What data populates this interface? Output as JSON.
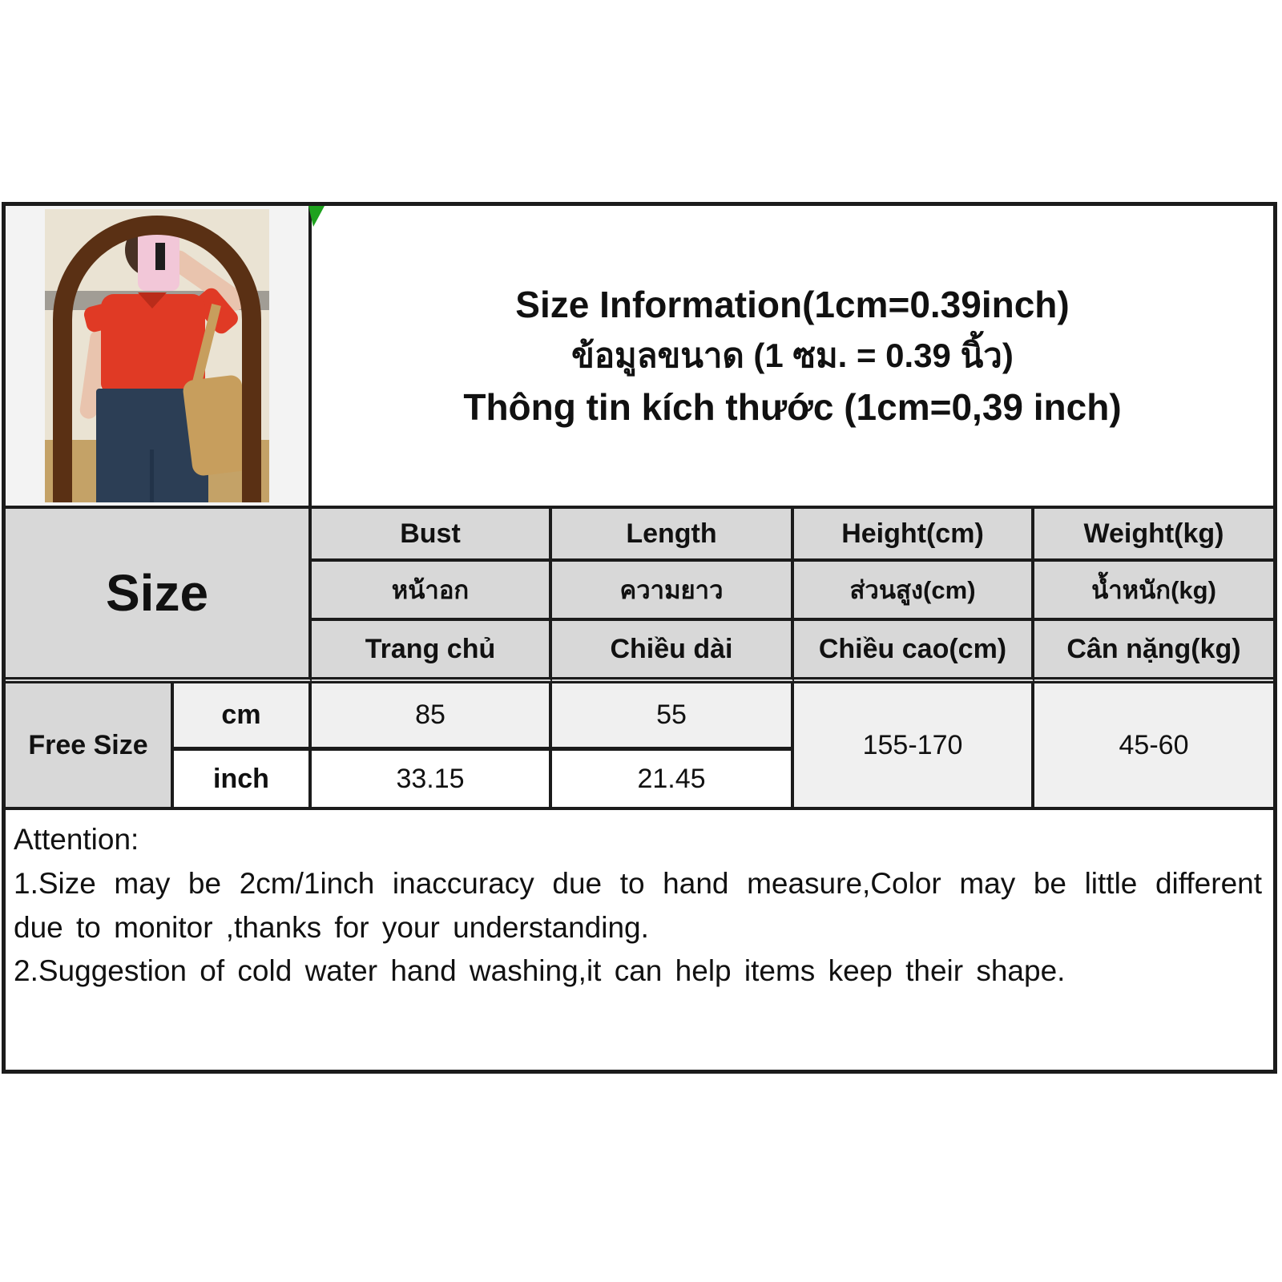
{
  "title": {
    "line_en": "Size Information(1cm=0.39inch)",
    "line_th": "ข้อมูลขนาด (1 ซม. = 0.39 นิ้ว)",
    "line_vi": "Thông tin kích thước (1cm=0,39 inch)"
  },
  "photo": {
    "description": "model mirror selfie wearing red short-sleeve knit top and dark blue wide-leg jeans with tan shoulder bag"
  },
  "size_table": {
    "corner_label": "Size",
    "columns": [
      {
        "en": "Bust",
        "th": "หน้าอก",
        "vi": "Trang chủ"
      },
      {
        "en": "Length",
        "th": "ความยาว",
        "vi": "Chiều dài"
      },
      {
        "en": "Height(cm)",
        "th": "ส่วนสูง(cm)",
        "vi": "Chiều cao(cm)"
      },
      {
        "en": "Weight(kg)",
        "th": "น้ำหนัก(kg)",
        "vi": "Cân nặng(kg)"
      }
    ],
    "row_label": "Free Size",
    "unit_cm": "cm",
    "unit_inch": "inch",
    "cm_values": {
      "bust": "85",
      "length": "55"
    },
    "inch_values": {
      "bust": "33.15",
      "length": "21.45"
    },
    "height_range": "155-170",
    "weight_range": "45-60"
  },
  "attention": {
    "heading": "Attention:",
    "line1": "1.Size may be 2cm/1inch inaccuracy due to hand measure,Color may be little different",
    "line2": "due to monitor ,thanks for your understanding.",
    "line3": "2.Suggestion of cold water hand washing,it can help items keep their shape."
  },
  "colors": {
    "border": "#1b1b1b",
    "header_bg": "#d8d8d8",
    "light_cell_bg": "#f0f0f0",
    "corner_triangle_green": "#1ea21e",
    "photo_top_red": "#e03a25",
    "photo_jeans_navy": "#2c3e55",
    "photo_bag_tan": "#c79e5d",
    "photo_frame_brown": "#5a3014",
    "photo_wall_cream": "#eae3d3",
    "photo_floor_tan": "#c4a267"
  }
}
